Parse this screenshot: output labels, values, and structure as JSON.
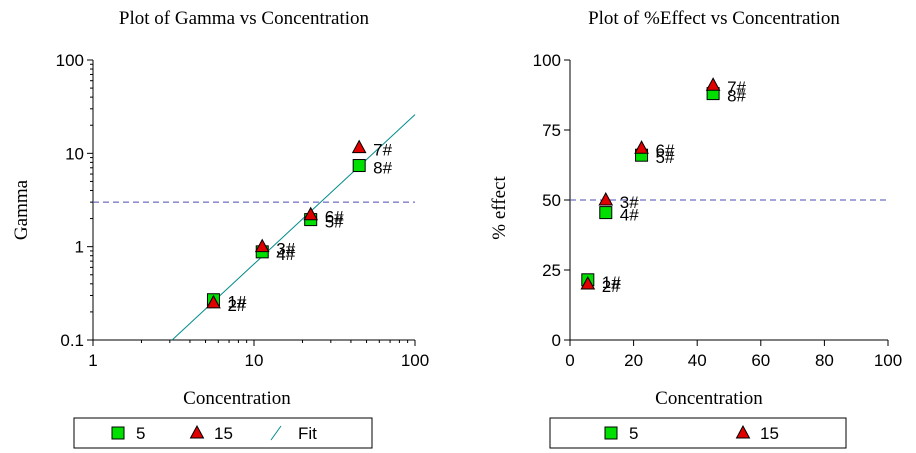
{
  "chart_data": [
    {
      "type": "scatter",
      "title": "Plot of Gamma vs Concentration",
      "xlabel": "Concentration",
      "ylabel": "Gamma",
      "xscale": "log",
      "yscale": "log",
      "xlim": [
        1,
        100
      ],
      "ylim": [
        0.1,
        100
      ],
      "xticks": [
        "1",
        "10",
        "100"
      ],
      "yticks": [
        "0.1",
        "1",
        "10",
        "100"
      ],
      "reference_line_y": 3.0,
      "series": [
        {
          "name": "5",
          "marker": "square",
          "color": "#00e000",
          "x": [
            5.6,
            11.25,
            22.5,
            45
          ],
          "y": [
            0.27,
            0.88,
            1.95,
            7.4
          ],
          "labels": [
            "1#",
            "4#",
            "5#",
            "8#"
          ]
        },
        {
          "name": "15",
          "marker": "triangle",
          "color": "#e00000",
          "x": [
            5.6,
            11.25,
            22.5,
            45
          ],
          "y": [
            0.25,
            1.0,
            2.2,
            11.5
          ],
          "labels": [
            "2#",
            "3#",
            "6#",
            "7#"
          ]
        }
      ],
      "fit": {
        "name": "Fit",
        "color": "#008b8b",
        "x": [
          3.1,
          100
        ],
        "y": [
          0.1,
          26
        ]
      }
    },
    {
      "type": "scatter",
      "title": "Plot of %Effect vs Concentration",
      "xlabel": "Concentration",
      "ylabel": "% effect",
      "xlim": [
        0,
        100
      ],
      "ylim": [
        0,
        100
      ],
      "xticks": [
        "0",
        "20",
        "40",
        "60",
        "80",
        "100"
      ],
      "yticks": [
        "0",
        "25",
        "50",
        "75",
        "100"
      ],
      "reference_line_y": 50,
      "series": [
        {
          "name": "5",
          "marker": "square",
          "color": "#00e000",
          "x": [
            5.6,
            11.25,
            22.5,
            45
          ],
          "y": [
            21.5,
            45.5,
            66,
            88
          ],
          "labels": [
            "1#",
            "4#",
            "5#",
            "8#"
          ]
        },
        {
          "name": "15",
          "marker": "triangle",
          "color": "#e00000",
          "x": [
            5.6,
            11.25,
            22.5,
            45
          ],
          "y": [
            20,
            50,
            68.5,
            91
          ],
          "labels": [
            "2#",
            "3#",
            "6#",
            "7#"
          ]
        }
      ]
    }
  ],
  "legend1": {
    "items": [
      "5",
      "15",
      "Fit"
    ]
  },
  "legend2": {
    "items": [
      "5",
      "15"
    ]
  }
}
